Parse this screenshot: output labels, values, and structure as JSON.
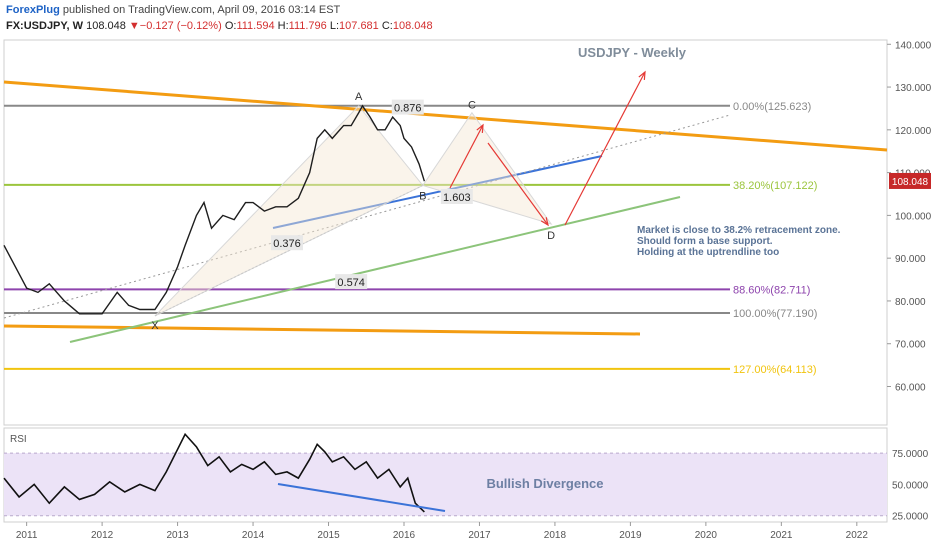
{
  "header": {
    "brand": "ForexPlug",
    "published": " published on TradingView.com, April 09, 2016 03:14 EST",
    "symbol": "FX:USDJPY, W",
    "last": "108.048",
    "change_arrow": "▼",
    "change": "−0.127 (−0.12%)",
    "o_label": "O:",
    "o": "111.594",
    "h_label": "H:",
    "h": "111.796",
    "l_label": "L:",
    "l": "107.681",
    "c_label": "C:",
    "c": "108.048"
  },
  "chart_data": {
    "type": "line",
    "title": "USDJPY - Weekly",
    "x_ticks": [
      "2011",
      "2012",
      "2013",
      "2014",
      "2015",
      "2016",
      "2017",
      "2018",
      "2019",
      "2020",
      "2021",
      "2022"
    ],
    "price_axis": {
      "ylim": [
        51,
        141
      ],
      "ticks": [
        "140.000",
        "130.000",
        "120.000",
        "110.000",
        "100.000",
        "90.000",
        "80.000",
        "70.000",
        "60.000"
      ]
    },
    "current_price": "108.048",
    "price_series": {
      "x": [
        2010.7,
        2010.85,
        2011.0,
        2011.15,
        2011.3,
        2011.5,
        2011.7,
        2011.85,
        2012.0,
        2012.2,
        2012.35,
        2012.5,
        2012.7,
        2012.85,
        2013.0,
        2013.1,
        2013.25,
        2013.35,
        2013.45,
        2013.6,
        2013.75,
        2013.9,
        2014.0,
        2014.15,
        2014.3,
        2014.45,
        2014.6,
        2014.75,
        2014.85,
        2014.95,
        2015.05,
        2015.2,
        2015.3,
        2015.4,
        2015.45,
        2015.55,
        2015.65,
        2015.75,
        2015.85,
        2015.95,
        2016.0,
        2016.1,
        2016.2,
        2016.27
      ],
      "values": [
        93,
        88,
        83,
        82,
        84,
        80,
        77,
        77,
        77,
        82,
        79,
        78,
        78,
        82,
        88,
        93,
        100,
        103,
        97,
        100,
        99,
        103,
        103,
        101,
        102,
        102,
        104,
        110,
        118,
        120,
        118,
        121,
        121,
        124,
        125.6,
        123,
        120,
        120,
        123,
        121,
        118,
        116,
        112,
        108
      ]
    },
    "fib_levels": [
      {
        "label": "0.00%(125.623)",
        "value": 125.623,
        "color": "#888888"
      },
      {
        "label": "38.20%(107.122)",
        "value": 107.122,
        "color": "#9bc53d"
      },
      {
        "label": "88.60%(82.711)",
        "value": 82.711,
        "color": "#8e44ad"
      },
      {
        "label": "100.00%(77.190)",
        "value": 77.19,
        "color": "#888888"
      },
      {
        "label": "127.00%(64.113)",
        "value": 64.113,
        "color": "#f1c40f"
      }
    ],
    "pattern_points": [
      {
        "label": "X",
        "x": 2012.7,
        "y": 76.5
      },
      {
        "label": "A",
        "x": 2015.4,
        "y": 125.6
      },
      {
        "label": "B",
        "x": 2016.25,
        "y": 107
      },
      {
        "label": "C",
        "x": 2016.9,
        "y": 124
      },
      {
        "label": "D",
        "x": 2017.95,
        "y": 98
      }
    ],
    "ratio_labels": [
      {
        "text": "0.876",
        "x": 2016.05,
        "y": 125.2
      },
      {
        "text": "0.376",
        "x": 2014.45,
        "y": 93.5
      },
      {
        "text": "0.574",
        "x": 2015.3,
        "y": 84.4
      },
      {
        "text": "1.603",
        "x": 2016.7,
        "y": 104.3
      }
    ],
    "annotation": [
      "Market is close to 38.2% retracement zone.",
      "Should form a base support.",
      "Holding at the uptrendline too"
    ],
    "rsi": {
      "label": "RSI",
      "ticks": [
        "75.0000",
        "50.0000",
        "25.0000"
      ],
      "ylim": [
        20,
        95
      ],
      "x": [
        2010.7,
        2010.9,
        2011.1,
        2011.3,
        2011.5,
        2011.7,
        2011.9,
        2012.1,
        2012.3,
        2012.5,
        2012.7,
        2012.85,
        2013.0,
        2013.1,
        2013.25,
        2013.4,
        2013.55,
        2013.7,
        2013.85,
        2014.0,
        2014.15,
        2014.3,
        2014.45,
        2014.6,
        2014.75,
        2014.85,
        2014.95,
        2015.05,
        2015.2,
        2015.35,
        2015.5,
        2015.65,
        2015.8,
        2015.95,
        2016.05,
        2016.15,
        2016.27
      ],
      "values": [
        55,
        40,
        50,
        35,
        48,
        38,
        42,
        52,
        44,
        50,
        45,
        60,
        78,
        90,
        80,
        65,
        72,
        60,
        66,
        62,
        68,
        58,
        60,
        55,
        70,
        82,
        76,
        68,
        72,
        62,
        68,
        55,
        62,
        48,
        55,
        35,
        28
      ],
      "divergence_label": "Bullish Divergence"
    }
  }
}
